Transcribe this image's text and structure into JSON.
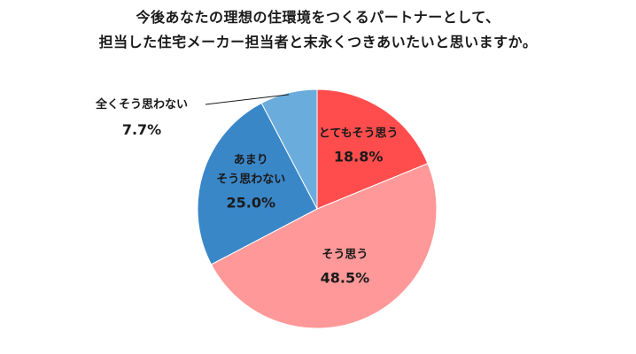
{
  "title": {
    "line1": "今後あなたの理想の住環境をつくるパートナーとして、",
    "line2": "担当した住宅メーカー担当者と末永くつきあいたいと思いますか。"
  },
  "chart_data": {
    "type": "pie",
    "title": "今後あなたの理想の住環境をつくるパートナーとして、担当した住宅メーカー担当者と末永くつきあいたいと思いますか。",
    "unit": "%",
    "slices": [
      {
        "label": "とてもそう思う",
        "value": 18.8,
        "value_label": "18.8%",
        "color": "#ff4d4d"
      },
      {
        "label": "そう思う",
        "value": 48.5,
        "value_label": "48.5%",
        "color": "#ff9999"
      },
      {
        "label": "あまりそう思わない",
        "label_lines": [
          "あまり",
          "そう思わない"
        ],
        "value": 25.0,
        "value_label": "25.0%",
        "color": "#3a87c8"
      },
      {
        "label": "全くそう思わない",
        "value": 7.7,
        "value_label": "7.7%",
        "color": "#6aacdc"
      }
    ]
  }
}
